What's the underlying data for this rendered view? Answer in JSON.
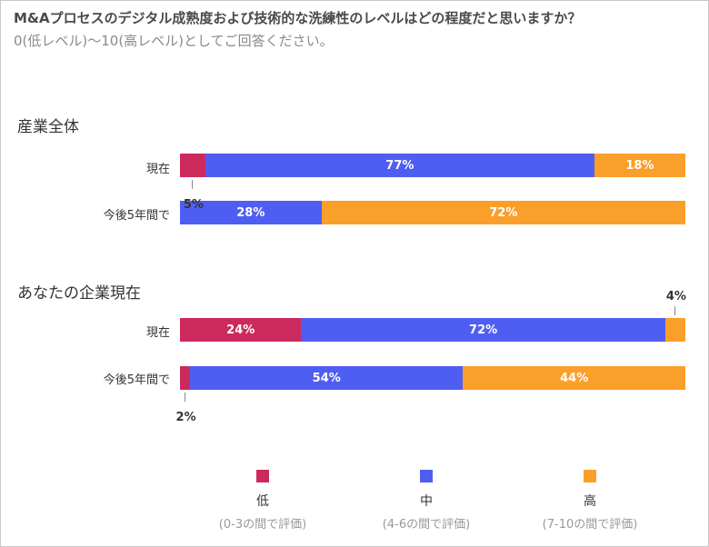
{
  "title": "M&Aプロセスのデジタル成熟度および技術的な洗練性のレベルはどの程度だと思いますか？",
  "subtitle": "0(低レベル)〜10(高レベル)としてご回答ください。",
  "colors": {
    "low": "#cc2a5c",
    "mid": "#4f5ef2",
    "high": "#fa9f2a"
  },
  "chart_data": {
    "type": "bar",
    "orientation": "horizontal",
    "stacked": true,
    "unit": "%",
    "series_names": [
      "低",
      "中",
      "高"
    ],
    "groups": [
      {
        "title": "産業全体",
        "rows": [
          {
            "label": "現在",
            "values": [
              5,
              77,
              18
            ],
            "value_labels": [
              "5%",
              "77%",
              "18%"
            ]
          },
          {
            "label": "今後5年間で",
            "values": [
              0,
              28,
              72
            ],
            "value_labels": [
              "",
              "28%",
              "72%"
            ]
          }
        ]
      },
      {
        "title": "あなたの企業現在",
        "rows": [
          {
            "label": "現在",
            "values": [
              24,
              72,
              4
            ],
            "value_labels": [
              "24%",
              "72%",
              "4%"
            ]
          },
          {
            "label": "今後5年間で",
            "values": [
              2,
              54,
              44
            ],
            "value_labels": [
              "2%",
              "54%",
              "44%"
            ]
          }
        ]
      }
    ],
    "legend": [
      {
        "name": "低",
        "sub": "(0-3の間で評価)"
      },
      {
        "name": "中",
        "sub": "(4-6の間で評価)"
      },
      {
        "name": "高",
        "sub": "(7-10の間で評価)"
      }
    ]
  }
}
